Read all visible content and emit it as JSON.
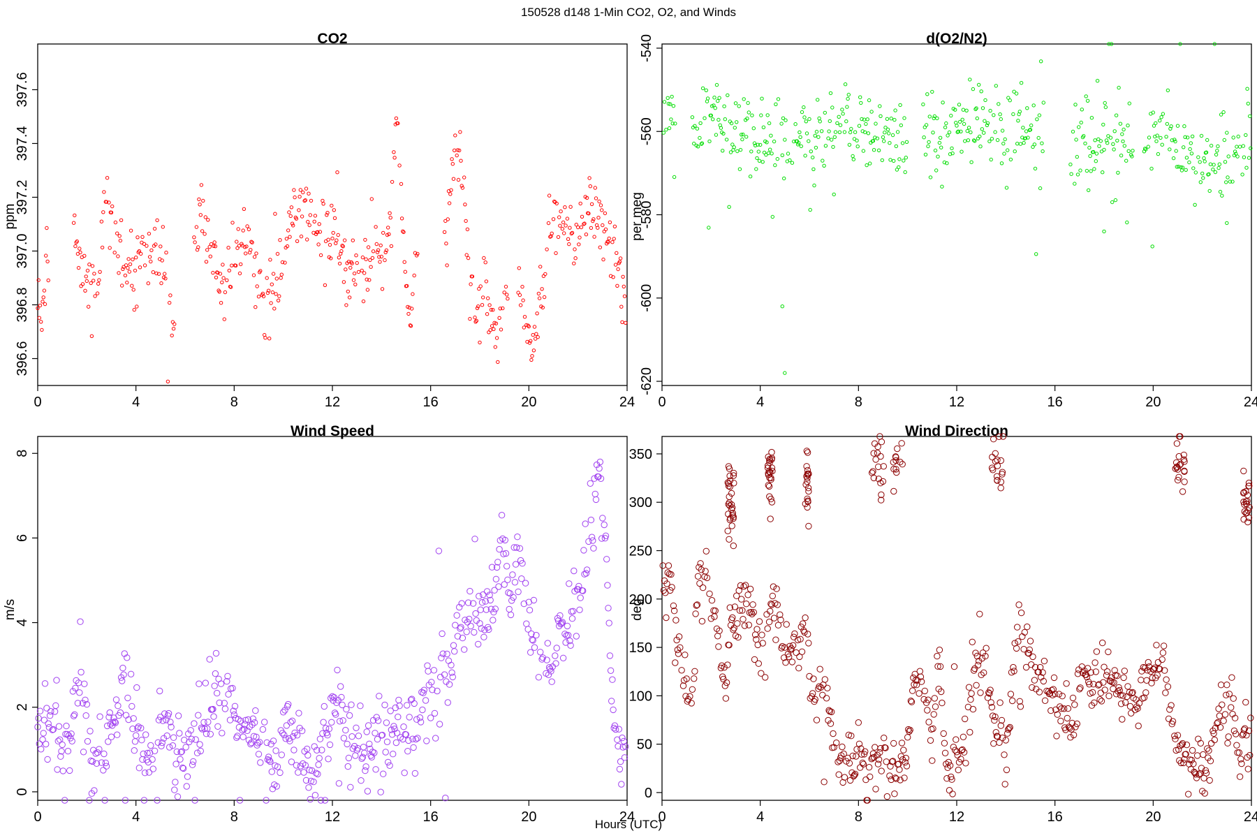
{
  "figure": {
    "suptitle": "150528   d148   1-Min CO2, O2, and Winds",
    "xlabel": "Hours (UTC)"
  },
  "chart_data": [
    {
      "type": "scatter",
      "title": "CO2",
      "ylabel": "ppm",
      "xlabel": "",
      "xlim": [
        0,
        24
      ],
      "ylim": [
        396.5,
        397.77
      ],
      "xticks": [
        0,
        4,
        8,
        12,
        16,
        20,
        24
      ],
      "yticks": [
        396.6,
        396.8,
        397.0,
        397.2,
        397.4,
        397.6
      ],
      "ytick_labels": [
        "396.6",
        "396.8",
        "397.0",
        "397.2",
        "397.4",
        "397.6"
      ],
      "ytick_rotated": true,
      "color": "#ff0000",
      "marker_size": 2.2,
      "grid": false,
      "series": [
        {
          "trend": [
            [
              0.0,
              396.84
            ],
            [
              0.2,
              396.8
            ],
            [
              0.4,
              396.97
            ],
            [
              1.5,
              397.05
            ],
            [
              1.7,
              396.94
            ],
            [
              2.0,
              396.92
            ],
            [
              2.4,
              396.9
            ],
            [
              2.8,
              397.22
            ],
            [
              3.2,
              397.02
            ],
            [
              3.6,
              396.93
            ],
            [
              4.0,
              396.9
            ],
            [
              4.4,
              397.02
            ],
            [
              4.8,
              397.0
            ],
            [
              5.2,
              396.92
            ],
            [
              5.5,
              396.76
            ],
            [
              6.4,
              397.05
            ],
            [
              6.7,
              397.1
            ],
            [
              7.1,
              397.02
            ],
            [
              7.5,
              396.85
            ],
            [
              7.8,
              396.95
            ],
            [
              8.3,
              397.02
            ],
            [
              8.6,
              397.05
            ],
            [
              9.0,
              396.82
            ],
            [
              9.4,
              396.83
            ],
            [
              9.8,
              396.85
            ],
            [
              10.2,
              397.1
            ],
            [
              10.7,
              397.18
            ],
            [
              11.2,
              397.12
            ],
            [
              11.6,
              396.98
            ],
            [
              12.0,
              397.08
            ],
            [
              12.3,
              397.0
            ],
            [
              12.6,
              396.9
            ],
            [
              13.0,
              396.9
            ],
            [
              13.5,
              396.95
            ],
            [
              13.8,
              397.0
            ],
            [
              14.1,
              396.93
            ],
            [
              14.4,
              397.05
            ],
            [
              14.6,
              397.55
            ],
            [
              14.8,
              397.2
            ],
            [
              15.0,
              396.8
            ],
            [
              15.2,
              396.72
            ],
            [
              15.4,
              396.95
            ],
            [
              16.6,
              397.05
            ],
            [
              16.9,
              397.3
            ],
            [
              17.2,
              397.45
            ],
            [
              17.6,
              396.85
            ],
            [
              17.9,
              396.8
            ],
            [
              18.2,
              396.85
            ],
            [
              18.5,
              396.75
            ],
            [
              18.8,
              396.7
            ],
            [
              19.0,
              396.85
            ],
            [
              19.6,
              396.85
            ],
            [
              19.9,
              396.7
            ],
            [
              20.2,
              396.65
            ],
            [
              20.5,
              396.85
            ],
            [
              20.8,
              397.0
            ],
            [
              21.0,
              397.1
            ],
            [
              21.3,
              397.12
            ],
            [
              21.6,
              397.1
            ],
            [
              21.9,
              397.05
            ],
            [
              22.2,
              397.12
            ],
            [
              22.5,
              397.18
            ],
            [
              22.8,
              397.12
            ],
            [
              23.2,
              397.05
            ],
            [
              23.5,
              397.0
            ],
            [
              23.7,
              396.9
            ],
            [
              23.9,
              396.85
            ]
          ],
          "spread": 0.06,
          "gaps": [
            [
              0.45,
              1.45
            ],
            [
              5.6,
              6.35
            ],
            [
              15.5,
              16.55
            ],
            [
              19.15,
              19.55
            ]
          ],
          "seed": 11
        }
      ]
    },
    {
      "type": "scatter",
      "title": "d(O2/N2)",
      "ylabel": "per meg",
      "xlabel": "",
      "xlim": [
        0,
        24
      ],
      "ylim": [
        -621,
        -539
      ],
      "xticks": [
        0,
        4,
        8,
        12,
        16,
        20,
        24
      ],
      "yticks": [
        -620,
        -600,
        -580,
        -560,
        -540
      ],
      "ytick_labels": [
        "-620",
        "-600",
        "-580",
        "-560",
        "-540"
      ],
      "ytick_rotated": true,
      "color": "#00dd00",
      "marker_size": 2.2,
      "grid": false,
      "series": [
        {
          "trend": [
            [
              0.0,
              -557
            ],
            [
              0.5,
              -556
            ],
            [
              1.3,
              -561
            ],
            [
              2.0,
              -556
            ],
            [
              3.0,
              -559
            ],
            [
              4.0,
              -561
            ],
            [
              5.0,
              -562
            ],
            [
              5.6,
              -565
            ],
            [
              6.3,
              -561
            ],
            [
              7.0,
              -560
            ],
            [
              8.0,
              -558
            ],
            [
              9.0,
              -561
            ],
            [
              9.8,
              -564
            ],
            [
              10.8,
              -562
            ],
            [
              12.0,
              -561
            ],
            [
              13.0,
              -559
            ],
            [
              14.0,
              -561
            ],
            [
              15.0,
              -562
            ],
            [
              16.8,
              -563
            ],
            [
              17.5,
              -563
            ],
            [
              18.0,
              -561
            ],
            [
              19.0,
              -560
            ],
            [
              20.0,
              -561
            ],
            [
              21.0,
              -563
            ],
            [
              21.8,
              -566
            ],
            [
              22.5,
              -567
            ],
            [
              23.0,
              -566
            ],
            [
              23.5,
              -562
            ],
            [
              24.0,
              -557
            ]
          ],
          "spread": 5,
          "gaps": [
            [
              0.6,
              1.2
            ],
            [
              10.0,
              10.6
            ],
            [
              15.6,
              16.6
            ],
            [
              19.2,
              19.6
            ]
          ],
          "outliers": [
            [
              4.9,
              -602
            ],
            [
              5.0,
              -618
            ],
            [
              18.0,
              -584
            ],
            [
              23.0,
              -582
            ]
          ],
          "seed": 23
        }
      ]
    },
    {
      "type": "scatter",
      "title": "Wind Speed",
      "ylabel": "m/s",
      "xlabel": "",
      "xlim": [
        0,
        24
      ],
      "ylim": [
        -0.2,
        8.4
      ],
      "xticks": [
        0,
        4,
        8,
        12,
        16,
        20,
        24
      ],
      "yticks": [
        0,
        2,
        4,
        6,
        8
      ],
      "ytick_labels": [
        "0",
        "2",
        "4",
        "6",
        "8"
      ],
      "ytick_rotated": true,
      "color": "#a040f0",
      "marker_size": 4.2,
      "grid": false,
      "series": [
        {
          "trend": [
            [
              0.0,
              1.5
            ],
            [
              0.5,
              2.0
            ],
            [
              0.9,
              1.0
            ],
            [
              1.3,
              1.0
            ],
            [
              1.7,
              2.8
            ],
            [
              2.1,
              1.0
            ],
            [
              2.5,
              0.8
            ],
            [
              3.0,
              1.5
            ],
            [
              3.5,
              2.8
            ],
            [
              3.9,
              1.5
            ],
            [
              4.4,
              0.8
            ],
            [
              4.8,
              1.0
            ],
            [
              5.2,
              1.8
            ],
            [
              5.6,
              0.8
            ],
            [
              6.0,
              0.6
            ],
            [
              6.4,
              1.2
            ],
            [
              6.8,
              1.6
            ],
            [
              7.2,
              2.2
            ],
            [
              7.8,
              1.8
            ],
            [
              8.3,
              1.5
            ],
            [
              8.8,
              1.4
            ],
            [
              9.2,
              1.0
            ],
            [
              9.8,
              1.0
            ],
            [
              10.2,
              1.2
            ],
            [
              10.6,
              1.3
            ],
            [
              11.0,
              0.8
            ],
            [
              11.3,
              0.4
            ],
            [
              11.8,
              1.8
            ],
            [
              12.3,
              2.0
            ],
            [
              12.7,
              1.2
            ],
            [
              13.0,
              1.2
            ],
            [
              13.5,
              0.8
            ],
            [
              14.0,
              1.5
            ],
            [
              14.5,
              1.4
            ],
            [
              15.0,
              1.6
            ],
            [
              15.5,
              1.4
            ],
            [
              16.0,
              2.2
            ],
            [
              16.5,
              2.8
            ],
            [
              17.0,
              3.5
            ],
            [
              17.5,
              4.2
            ],
            [
              18.0,
              4.0
            ],
            [
              18.5,
              4.5
            ],
            [
              18.9,
              6.0
            ],
            [
              19.2,
              4.5
            ],
            [
              19.6,
              5.8
            ],
            [
              20.0,
              4.0
            ],
            [
              20.4,
              3.0
            ],
            [
              20.8,
              2.8
            ],
            [
              21.2,
              3.8
            ],
            [
              21.6,
              4.0
            ],
            [
              22.0,
              4.2
            ],
            [
              22.4,
              5.5
            ],
            [
              22.8,
              7.3
            ],
            [
              23.1,
              6.5
            ],
            [
              23.4,
              2.0
            ],
            [
              23.7,
              1.2
            ],
            [
              23.9,
              1.0
            ]
          ],
          "spread": 0.45,
          "gaps": [],
          "seed": 37
        }
      ]
    },
    {
      "type": "scatter",
      "title": "Wind Direction",
      "ylabel": "deg",
      "xlabel": "",
      "xlim": [
        0,
        24
      ],
      "ylim": [
        -8,
        368
      ],
      "xticks": [
        0,
        4,
        8,
        12,
        16,
        20,
        24
      ],
      "yticks": [
        0,
        50,
        100,
        150,
        200,
        250,
        300,
        350
      ],
      "ytick_labels": [
        "0",
        "50",
        "100",
        "150",
        "200",
        "250",
        "300",
        "350"
      ],
      "ytick_rotated": false,
      "color": "#8b0000",
      "marker_size": 4.2,
      "grid": false,
      "series": [
        {
          "trend": [
            [
              0.0,
              200
            ],
            [
              0.3,
              220
            ],
            [
              0.6,
              165
            ],
            [
              0.9,
              110
            ],
            [
              1.2,
              100
            ],
            [
              1.5,
              215
            ],
            [
              1.8,
              220
            ],
            [
              2.2,
              180
            ],
            [
              2.5,
              100
            ],
            [
              2.8,
              170
            ],
            [
              3.2,
              195
            ],
            [
              3.6,
              200
            ],
            [
              3.9,
              160
            ],
            [
              4.2,
              150
            ],
            [
              4.6,
              210
            ],
            [
              5.0,
              150
            ],
            [
              5.4,
              140
            ],
            [
              5.8,
              175
            ],
            [
              6.1,
              100
            ],
            [
              6.5,
              110
            ],
            [
              6.9,
              70
            ],
            [
              7.2,
              25
            ],
            [
              7.6,
              35
            ],
            [
              8.0,
              40
            ],
            [
              8.4,
              30
            ],
            [
              8.8,
              40
            ],
            [
              9.2,
              25
            ],
            [
              9.6,
              20
            ],
            [
              10.0,
              55
            ],
            [
              10.3,
              120
            ],
            [
              10.6,
              110
            ],
            [
              11.0,
              60
            ],
            [
              11.3,
              150
            ],
            [
              11.6,
              20
            ],
            [
              12.0,
              40
            ],
            [
              12.4,
              60
            ],
            [
              12.8,
              130
            ],
            [
              13.2,
              120
            ],
            [
              13.6,
              70
            ],
            [
              14.0,
              35
            ],
            [
              14.4,
              160
            ],
            [
              14.8,
              170
            ],
            [
              15.2,
              110
            ],
            [
              15.6,
              120
            ],
            [
              16.0,
              100
            ],
            [
              16.4,
              95
            ],
            [
              16.7,
              70
            ],
            [
              17.0,
              120
            ],
            [
              17.5,
              115
            ],
            [
              18.0,
              118
            ],
            [
              18.5,
              115
            ],
            [
              19.0,
              95
            ],
            [
              19.4,
              85
            ],
            [
              19.8,
              125
            ],
            [
              20.2,
              130
            ],
            [
              20.6,
              100
            ],
            [
              20.9,
              50
            ],
            [
              21.2,
              35
            ],
            [
              21.6,
              25
            ],
            [
              22.0,
              35
            ],
            [
              22.4,
              40
            ],
            [
              22.8,
              100
            ],
            [
              23.2,
              90
            ],
            [
              23.5,
              40
            ],
            [
              23.8,
              60
            ]
          ],
          "spread": 14,
          "gaps": [],
          "wrap_clusters": [
            [
              2.8,
              300,
              0.25,
              30
            ],
            [
              4.4,
              330,
              0.2,
              25
            ],
            [
              5.9,
              320,
              0.15,
              20
            ],
            [
              8.8,
              340,
              0.5,
              18
            ],
            [
              9.6,
              345,
              0.4,
              12
            ],
            [
              13.6,
              340,
              0.6,
              18
            ],
            [
              21.1,
              340,
              0.4,
              20
            ],
            [
              23.8,
              300,
              0.25,
              22
            ]
          ],
          "seed": 53
        }
      ]
    }
  ]
}
